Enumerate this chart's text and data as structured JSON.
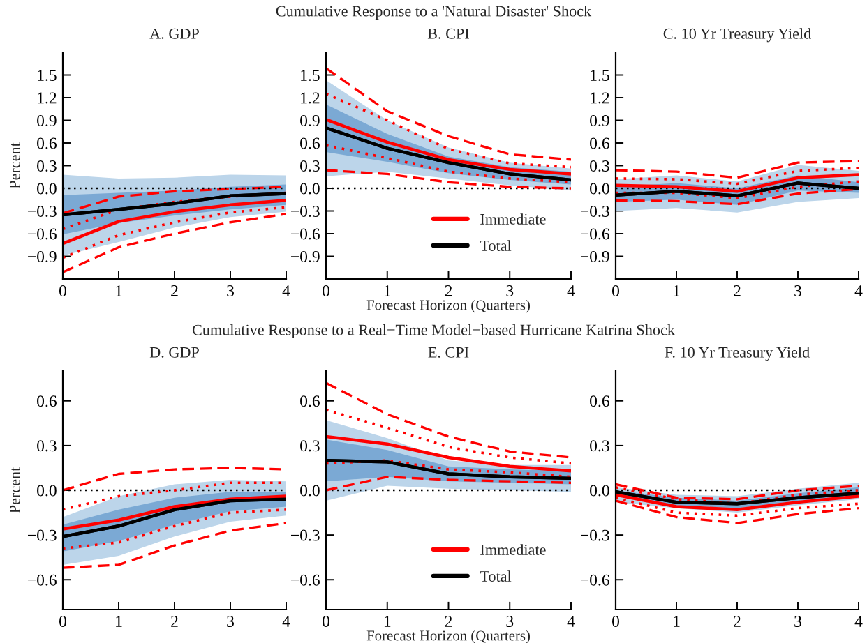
{
  "chart_data": [
    {
      "type": "line",
      "title": "A. GDP",
      "ylabel": "Percent",
      "annotations": [
        "Cumulative Response to a 'Natural Disaster' Shock"
      ],
      "x": [
        0,
        1,
        2,
        3,
        4
      ],
      "xlim": [
        0,
        4
      ],
      "xticks": [
        0,
        1,
        2,
        3,
        4
      ],
      "ylim": [
        -1.2,
        1.8
      ],
      "yticks": [
        {
          "value": -0.9,
          "label": "−0.9"
        },
        {
          "value": -0.6,
          "label": "−0.6"
        },
        {
          "value": -0.3,
          "label": "−0.3"
        },
        {
          "value": 0,
          "label": "0.0"
        },
        {
          "value": 0.3,
          "label": "0.3"
        },
        {
          "value": 0.6,
          "label": "0.6"
        },
        {
          "value": 0.9,
          "label": "0.9"
        },
        {
          "value": 1.2,
          "label": "1.2"
        },
        {
          "value": 1.5,
          "label": "1.5"
        }
      ],
      "ref_lines": [
        {
          "axis": "y",
          "value": 0,
          "color": "#000000",
          "line_style": "dotted"
        }
      ],
      "series": [
        {
          "color": "#000000",
          "values": [
            -0.35,
            -0.28,
            -0.2,
            -0.1,
            -0.07
          ],
          "lower": [
            -0.89,
            -0.71,
            -0.52,
            -0.38,
            -0.31
          ],
          "upper": [
            0.18,
            0.13,
            0.14,
            0.18,
            0.17
          ]
        },
        {
          "color": "#ff0000",
          "line_style": "dashed",
          "values": [
            -0.33,
            -0.11,
            -0.04,
            -0.01,
            0.02
          ]
        },
        {
          "color": "#ff0000",
          "line_style": "dashed",
          "values": [
            -1.11,
            -0.78,
            -0.6,
            -0.45,
            -0.34
          ]
        },
        {
          "color": "#ff0000",
          "line_style": "dotted",
          "values": [
            -0.54,
            -0.28,
            -0.18,
            -0.11,
            -0.06
          ]
        },
        {
          "color": "#ff0000",
          "line_style": "dotted",
          "values": [
            -0.92,
            -0.62,
            -0.45,
            -0.32,
            -0.25
          ]
        },
        {
          "color": "#ff0000",
          "values": [
            -0.73,
            -0.44,
            -0.31,
            -0.22,
            -0.16
          ]
        },
        {
          "color": "#000000",
          "values": [
            -0.35,
            -0.28,
            -0.2,
            -0.1,
            -0.07
          ],
          "lower": [
            -0.61,
            -0.46,
            -0.36,
            -0.28,
            -0.22
          ],
          "upper": [
            -0.09,
            -0.06,
            -0.03,
            0.02,
            0.05
          ]
        }
      ]
    },
    {
      "type": "line",
      "title": "B. CPI",
      "xlabel": "Forecast Horizon (Quarters)",
      "x": [
        0,
        1,
        2,
        3,
        4
      ],
      "xlim": [
        0,
        4
      ],
      "xticks": [
        0,
        1,
        2,
        3,
        4
      ],
      "ylim": [
        -1.2,
        1.8
      ],
      "legend": "bottom right",
      "yticks": [
        {
          "value": -0.9,
          "label": "−0.9"
        },
        {
          "value": -0.6,
          "label": "−0.6"
        },
        {
          "value": -0.3,
          "label": "−0.3"
        },
        {
          "value": 0,
          "label": "0.0"
        },
        {
          "value": 0.3,
          "label": "0.3"
        },
        {
          "value": 0.6,
          "label": "0.6"
        },
        {
          "value": 0.9,
          "label": "0.9"
        },
        {
          "value": 1.2,
          "label": "1.2"
        },
        {
          "value": 1.5,
          "label": "1.5"
        }
      ],
      "ref_lines": [
        {
          "axis": "y",
          "value": 0,
          "color": "#000000",
          "line_style": "dotted"
        }
      ],
      "series": [
        {
          "color": "#000000",
          "values": [
            0.8,
            0.53,
            0.34,
            0.19,
            0.11
          ],
          "lower": [
            0.16,
            0.22,
            0.13,
            0.04,
            -0.03
          ],
          "upper": [
            1.43,
            0.9,
            0.54,
            0.34,
            0.26
          ]
        },
        {
          "color": "#ff0000",
          "line_style": "dashed",
          "values": [
            1.59,
            1.02,
            0.69,
            0.45,
            0.38
          ]
        },
        {
          "color": "#ff0000",
          "line_style": "dashed",
          "values": [
            0.24,
            0.19,
            0.08,
            0.02,
            0.0
          ]
        },
        {
          "color": "#ff0000",
          "line_style": "dotted",
          "values": [
            1.25,
            0.9,
            0.52,
            0.33,
            0.28
          ]
        },
        {
          "color": "#ff0000",
          "line_style": "dotted",
          "values": [
            0.57,
            0.4,
            0.22,
            0.13,
            0.08
          ]
        },
        {
          "name": "Immediate",
          "color": "#ff0000",
          "values": [
            0.91,
            0.61,
            0.38,
            0.25,
            0.19
          ]
        },
        {
          "name": "Total",
          "color": "#000000",
          "values": [
            0.8,
            0.53,
            0.34,
            0.19,
            0.11
          ],
          "lower": [
            0.48,
            0.35,
            0.2,
            0.11,
            0.05
          ],
          "upper": [
            1.11,
            0.72,
            0.42,
            0.28,
            0.22
          ]
        }
      ]
    },
    {
      "type": "line",
      "title": "C. 10 Yr Treasury Yield",
      "x": [
        0,
        1,
        2,
        3,
        4
      ],
      "xlim": [
        0,
        4
      ],
      "xticks": [
        0,
        1,
        2,
        3,
        4
      ],
      "ylim": [
        -1.2,
        1.8
      ],
      "yticks": [
        {
          "value": -0.9,
          "label": "−0.9"
        },
        {
          "value": -0.6,
          "label": "−0.6"
        },
        {
          "value": -0.3,
          "label": "−0.3"
        },
        {
          "value": 0,
          "label": "0.0"
        },
        {
          "value": 0.3,
          "label": "0.3"
        },
        {
          "value": 0.6,
          "label": "0.6"
        },
        {
          "value": 0.9,
          "label": "0.9"
        },
        {
          "value": 1.2,
          "label": "1.2"
        },
        {
          "value": 1.5,
          "label": "1.5"
        }
      ],
      "ref_lines": [
        {
          "axis": "y",
          "value": 0,
          "color": "#000000",
          "line_style": "dotted"
        }
      ],
      "series": [
        {
          "color": "#000000",
          "values": [
            -0.09,
            -0.04,
            -0.1,
            0.07,
            0.0
          ],
          "lower": [
            -0.3,
            -0.26,
            -0.32,
            -0.18,
            -0.13
          ],
          "upper": [
            0.12,
            0.17,
            0.09,
            0.31,
            0.23
          ]
        },
        {
          "color": "#ff0000",
          "line_style": "dashed",
          "values": [
            0.24,
            0.22,
            0.14,
            0.34,
            0.36
          ]
        },
        {
          "color": "#ff0000",
          "line_style": "dashed",
          "values": [
            -0.16,
            -0.17,
            -0.21,
            -0.07,
            -0.01
          ]
        },
        {
          "color": "#ff0000",
          "line_style": "dotted",
          "values": [
            0.13,
            0.12,
            0.06,
            0.23,
            0.27
          ]
        },
        {
          "color": "#ff0000",
          "line_style": "dotted",
          "values": [
            -0.06,
            -0.06,
            -0.13,
            0.02,
            0.09
          ]
        },
        {
          "color": "#ff0000",
          "values": [
            0.04,
            0.02,
            -0.04,
            0.14,
            0.18
          ]
        },
        {
          "color": "#000000",
          "values": [
            -0.09,
            -0.04,
            -0.1,
            0.07,
            0.0
          ],
          "lower": [
            -0.18,
            -0.15,
            -0.22,
            -0.03,
            -0.06
          ],
          "upper": [
            0.02,
            0.07,
            0.0,
            0.17,
            0.08
          ]
        }
      ]
    },
    {
      "type": "line",
      "title": "D. GDP",
      "ylabel": "Percent",
      "annotations": [
        "Cumulative Response to a Real−Time Model−based Hurricane Katrina Shock"
      ],
      "x": [
        0,
        1,
        2,
        3,
        4
      ],
      "xlim": [
        0,
        4
      ],
      "xticks": [
        0,
        1,
        2,
        3,
        4
      ],
      "ylim": [
        -0.8,
        0.8
      ],
      "yticks": [
        {
          "value": -0.6,
          "label": "−0.6"
        },
        {
          "value": -0.3,
          "label": "−0.3"
        },
        {
          "value": 0,
          "label": "0.0"
        },
        {
          "value": 0.3,
          "label": "0.3"
        },
        {
          "value": 0.6,
          "label": "0.6"
        }
      ],
      "ref_lines": [
        {
          "axis": "y",
          "value": 0,
          "color": "#000000",
          "line_style": "dotted"
        }
      ],
      "series": [
        {
          "color": "#000000",
          "values": [
            -0.31,
            -0.24,
            -0.13,
            -0.07,
            -0.06
          ],
          "lower": [
            -0.5,
            -0.44,
            -0.31,
            -0.21,
            -0.17
          ],
          "upper": [
            -0.18,
            -0.04,
            0.04,
            0.07,
            0.06
          ]
        },
        {
          "color": "#ff0000",
          "line_style": "dashed",
          "values": [
            0.0,
            0.11,
            0.14,
            0.15,
            0.14
          ]
        },
        {
          "color": "#ff0000",
          "line_style": "dashed",
          "values": [
            -0.52,
            -0.5,
            -0.37,
            -0.27,
            -0.22
          ]
        },
        {
          "color": "#ff0000",
          "line_style": "dotted",
          "values": [
            -0.13,
            -0.04,
            0.0,
            0.05,
            0.05
          ]
        },
        {
          "color": "#ff0000",
          "line_style": "dotted",
          "values": [
            -0.39,
            -0.35,
            -0.24,
            -0.15,
            -0.13
          ]
        },
        {
          "color": "#ff0000",
          "values": [
            -0.26,
            -0.2,
            -0.11,
            -0.06,
            -0.04
          ]
        },
        {
          "color": "#000000",
          "values": [
            -0.31,
            -0.24,
            -0.13,
            -0.07,
            -0.06
          ],
          "lower": [
            -0.41,
            -0.34,
            -0.23,
            -0.14,
            -0.11
          ],
          "upper": [
            -0.23,
            -0.13,
            -0.05,
            -0.01,
            -0.01
          ]
        }
      ]
    },
    {
      "type": "line",
      "title": "E. CPI",
      "xlabel": "Forecast Horizon (Quarters)",
      "x": [
        0,
        1,
        2,
        3,
        4
      ],
      "xlim": [
        0,
        4
      ],
      "xticks": [
        0,
        1,
        2,
        3,
        4
      ],
      "ylim": [
        -0.8,
        0.8
      ],
      "legend": "bottom right",
      "yticks": [
        {
          "value": -0.6,
          "label": "−0.6"
        },
        {
          "value": -0.3,
          "label": "−0.3"
        },
        {
          "value": 0,
          "label": "0.0"
        },
        {
          "value": 0.3,
          "label": "0.3"
        },
        {
          "value": 0.6,
          "label": "0.6"
        }
      ],
      "ref_lines": [
        {
          "axis": "y",
          "value": 0,
          "color": "#000000",
          "line_style": "dotted"
        }
      ],
      "series": [
        {
          "color": "#000000",
          "values": [
            0.2,
            0.19,
            0.11,
            0.09,
            0.08
          ],
          "lower": [
            -0.07,
            0.03,
            0.01,
            0.0,
            -0.01
          ],
          "upper": [
            0.47,
            0.35,
            0.2,
            0.17,
            0.17
          ]
        },
        {
          "color": "#ff0000",
          "line_style": "dashed",
          "values": [
            0.72,
            0.51,
            0.36,
            0.26,
            0.22
          ]
        },
        {
          "color": "#ff0000",
          "line_style": "dashed",
          "values": [
            0.0,
            0.09,
            0.07,
            0.06,
            0.05
          ]
        },
        {
          "color": "#ff0000",
          "line_style": "dotted",
          "values": [
            0.54,
            0.42,
            0.29,
            0.22,
            0.18
          ]
        },
        {
          "color": "#ff0000",
          "line_style": "dotted",
          "values": [
            0.18,
            0.2,
            0.14,
            0.12,
            0.09
          ]
        },
        {
          "name": "Immediate",
          "color": "#ff0000",
          "values": [
            0.36,
            0.31,
            0.22,
            0.16,
            0.13
          ]
        },
        {
          "name": "Total",
          "color": "#000000",
          "values": [
            0.2,
            0.19,
            0.11,
            0.09,
            0.08
          ],
          "lower": [
            0.06,
            0.09,
            0.06,
            0.05,
            0.04
          ],
          "upper": [
            0.34,
            0.27,
            0.16,
            0.14,
            0.13
          ]
        }
      ]
    },
    {
      "type": "line",
      "title": "F. 10 Yr Treasury Yield",
      "x": [
        0,
        1,
        2,
        3,
        4
      ],
      "xlim": [
        0,
        4
      ],
      "xticks": [
        0,
        1,
        2,
        3,
        4
      ],
      "ylim": [
        -0.8,
        0.8
      ],
      "yticks": [
        {
          "value": -0.6,
          "label": "−0.6"
        },
        {
          "value": -0.3,
          "label": "−0.3"
        },
        {
          "value": 0,
          "label": "0.0"
        },
        {
          "value": 0.3,
          "label": "0.3"
        },
        {
          "value": 0.6,
          "label": "0.6"
        }
      ],
      "ref_lines": [
        {
          "axis": "y",
          "value": 0,
          "color": "#000000",
          "line_style": "dotted"
        }
      ],
      "series": [
        {
          "color": "#000000",
          "values": [
            -0.01,
            -0.08,
            -0.09,
            -0.05,
            -0.02
          ],
          "lower": [
            -0.08,
            -0.12,
            -0.15,
            -0.1,
            -0.06
          ],
          "upper": [
            0.02,
            -0.03,
            -0.04,
            0.01,
            0.05
          ]
        },
        {
          "color": "#ff0000",
          "line_style": "dashed",
          "values": [
            0.04,
            -0.05,
            -0.06,
            0.0,
            0.03
          ]
        },
        {
          "color": "#ff0000",
          "line_style": "dashed",
          "values": [
            -0.07,
            -0.18,
            -0.22,
            -0.16,
            -0.12
          ]
        },
        {
          "color": "#ff0000",
          "line_style": "dotted",
          "values": [
            0.02,
            -0.06,
            -0.09,
            -0.03,
            0.0
          ]
        },
        {
          "color": "#ff0000",
          "line_style": "dotted",
          "values": [
            -0.05,
            -0.15,
            -0.17,
            -0.12,
            -0.09
          ]
        },
        {
          "color": "#ff0000",
          "values": [
            -0.03,
            -0.11,
            -0.13,
            -0.08,
            -0.04
          ]
        },
        {
          "color": "#000000",
          "values": [
            -0.01,
            -0.08,
            -0.09,
            -0.05,
            -0.02
          ],
          "lower": [
            -0.04,
            -0.1,
            -0.12,
            -0.07,
            -0.04
          ],
          "upper": [
            0.0,
            -0.05,
            -0.07,
            -0.02,
            0.02
          ]
        }
      ]
    }
  ]
}
